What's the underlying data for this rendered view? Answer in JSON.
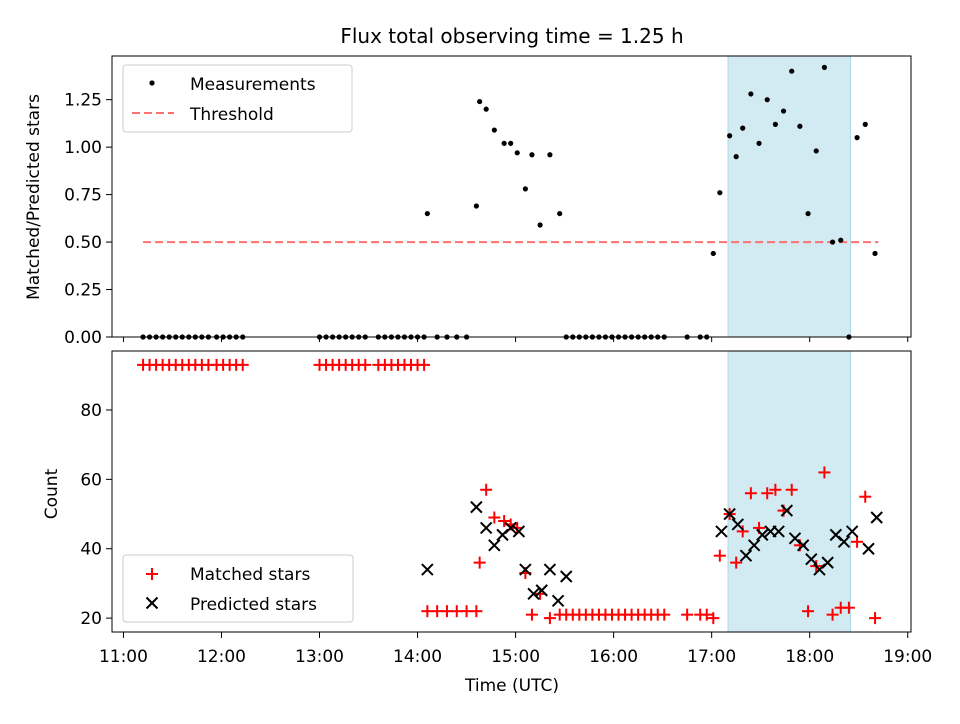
{
  "title": "Flux total observing time = 1.25 h",
  "colors": {
    "measurement": "#000000",
    "threshold": "#ff7070",
    "matched": "#ff0000",
    "predicted": "#000000",
    "highlight": "#add8e6"
  },
  "chart_data": [
    {
      "type": "scatter",
      "panel": "top",
      "ylabel": "Matched/Predicted stars",
      "xlim": [
        "10:53",
        "19:02"
      ],
      "ylim": [
        0,
        1.48
      ],
      "yticks": [
        "0.00",
        "0.25",
        "0.50",
        "0.75",
        "1.00",
        "1.25"
      ],
      "legend": {
        "placement": "upper-left",
        "entries": [
          "Measurements",
          "Threshold"
        ]
      },
      "highlight_span": [
        "17:10",
        "18:25"
      ],
      "threshold": {
        "name": "Threshold",
        "y": 0.5,
        "x": [
          "11:12",
          "18:42"
        ]
      },
      "series": [
        {
          "name": "Measurements",
          "x": [
            "11:12",
            "11:16",
            "11:20",
            "11:24",
            "11:28",
            "11:32",
            "11:36",
            "11:40",
            "11:44",
            "11:48",
            "11:52",
            "11:57",
            "12:01",
            "12:05",
            "12:09",
            "12:13",
            "13:00",
            "13:04",
            "13:08",
            "13:12",
            "13:16",
            "13:20",
            "13:24",
            "13:28",
            "13:36",
            "13:40",
            "13:44",
            "13:48",
            "13:52",
            "13:56",
            "14:00",
            "14:04",
            "14:06",
            "14:12",
            "14:18",
            "14:24",
            "14:30",
            "14:36",
            "14:38",
            "14:42",
            "14:47",
            "14:53",
            "14:57",
            "15:01",
            "15:06",
            "15:10",
            "15:15",
            "15:21",
            "15:27",
            "15:31",
            "15:35",
            "15:39",
            "15:43",
            "15:47",
            "15:51",
            "15:55",
            "15:59",
            "16:03",
            "16:07",
            "16:11",
            "16:15",
            "16:19",
            "16:23",
            "16:27",
            "16:31",
            "16:45",
            "16:53",
            "16:57",
            "17:01",
            "17:05",
            "17:11",
            "17:15",
            "17:19",
            "17:24",
            "17:29",
            "17:34",
            "17:39",
            "17:44",
            "17:49",
            "17:54",
            "17:59",
            "18:04",
            "18:09",
            "18:14",
            "18:19",
            "18:24",
            "18:29",
            "18:34",
            "18:40"
          ],
          "y": [
            0,
            0,
            0,
            0,
            0,
            0,
            0,
            0,
            0,
            0,
            0,
            0,
            0,
            0,
            0,
            0,
            0,
            0,
            0,
            0,
            0,
            0,
            0,
            0,
            0,
            0,
            0,
            0,
            0,
            0,
            0,
            0,
            0.65,
            0,
            0,
            0,
            0,
            0.69,
            1.24,
            1.2,
            1.09,
            1.02,
            1.02,
            0.97,
            0.78,
            0.96,
            0.59,
            0.96,
            0.65,
            0,
            0,
            0,
            0,
            0,
            0,
            0,
            0,
            0,
            0,
            0,
            0,
            0,
            0,
            0,
            0,
            0,
            0,
            0,
            0.44,
            0.76,
            1.06,
            0.95,
            1.1,
            1.28,
            1.02,
            1.25,
            1.12,
            1.19,
            1.4,
            1.11,
            0.65,
            0.98,
            1.42,
            0.5,
            0.51,
            0,
            1.05,
            1.12,
            0.44
          ]
        }
      ]
    },
    {
      "type": "scatter",
      "panel": "bottom",
      "xlabel": "Time (UTC)",
      "ylabel": "Count",
      "xlim": [
        "10:53",
        "19:02"
      ],
      "ylim": [
        16,
        97
      ],
      "xticks": [
        "11:00",
        "12:00",
        "13:00",
        "14:00",
        "15:00",
        "16:00",
        "17:00",
        "18:00",
        "19:00"
      ],
      "yticks": [
        "20",
        "40",
        "60",
        "80"
      ],
      "legend": {
        "placement": "lower-left",
        "entries": [
          "Matched stars",
          "Predicted stars"
        ]
      },
      "highlight_span": [
        "17:10",
        "18:25"
      ],
      "series": [
        {
          "name": "Matched stars",
          "marker": "+",
          "x": [
            "11:12",
            "11:16",
            "11:20",
            "11:24",
            "11:28",
            "11:32",
            "11:36",
            "11:40",
            "11:44",
            "11:48",
            "11:52",
            "11:57",
            "12:01",
            "12:05",
            "12:09",
            "12:13",
            "13:00",
            "13:04",
            "13:08",
            "13:12",
            "13:16",
            "13:20",
            "13:24",
            "13:28",
            "13:36",
            "13:40",
            "13:44",
            "13:48",
            "13:52",
            "13:56",
            "14:00",
            "14:04",
            "14:06",
            "14:12",
            "14:18",
            "14:24",
            "14:30",
            "14:36",
            "14:38",
            "14:42",
            "14:47",
            "14:53",
            "14:57",
            "15:01",
            "15:06",
            "15:10",
            "15:15",
            "15:21",
            "15:27",
            "15:31",
            "15:35",
            "15:39",
            "15:43",
            "15:47",
            "15:51",
            "15:55",
            "15:59",
            "16:03",
            "16:07",
            "16:11",
            "16:15",
            "16:19",
            "16:23",
            "16:27",
            "16:31",
            "16:45",
            "16:53",
            "16:57",
            "17:01",
            "17:05",
            "17:11",
            "17:15",
            "17:19",
            "17:24",
            "17:29",
            "17:34",
            "17:39",
            "17:44",
            "17:49",
            "17:54",
            "17:59",
            "18:04",
            "18:09",
            "18:14",
            "18:19",
            "18:24",
            "18:29",
            "18:34",
            "18:40"
          ],
          "y": [
            93,
            93,
            93,
            93,
            93,
            93,
            93,
            93,
            93,
            93,
            93,
            93,
            93,
            93,
            93,
            93,
            93,
            93,
            93,
            93,
            93,
            93,
            93,
            93,
            93,
            93,
            93,
            93,
            93,
            93,
            93,
            93,
            22,
            22,
            22,
            22,
            22,
            22,
            36,
            57,
            49,
            48,
            47,
            46,
            33,
            21,
            27,
            20,
            21,
            21,
            21,
            21,
            21,
            21,
            21,
            21,
            21,
            21,
            21,
            21,
            21,
            21,
            21,
            21,
            21,
            21,
            21,
            21,
            20,
            38,
            50,
            36,
            45,
            56,
            46,
            56,
            57,
            51,
            57,
            41,
            22,
            35,
            62,
            21,
            23,
            23,
            42,
            55,
            20
          ]
        },
        {
          "name": "Predicted stars",
          "marker": "x",
          "x": [
            "14:06",
            "14:36",
            "14:42",
            "14:47",
            "14:52",
            "14:57",
            "15:02",
            "15:06",
            "15:11",
            "15:16",
            "15:21",
            "15:26",
            "15:31",
            "17:06",
            "17:11",
            "17:16",
            "17:21",
            "17:26",
            "17:31",
            "17:36",
            "17:41",
            "17:46",
            "17:51",
            "17:56",
            "18:01",
            "18:06",
            "18:11",
            "18:16",
            "18:21",
            "18:26",
            "18:36",
            "18:41"
          ],
          "y": [
            34,
            52,
            46,
            41,
            44,
            46,
            45,
            34,
            27,
            28,
            34,
            25,
            32,
            45,
            50,
            47,
            38,
            41,
            44,
            45,
            45,
            51,
            43,
            41,
            37,
            34,
            36,
            44,
            42,
            45,
            40,
            49
          ]
        }
      ]
    }
  ]
}
